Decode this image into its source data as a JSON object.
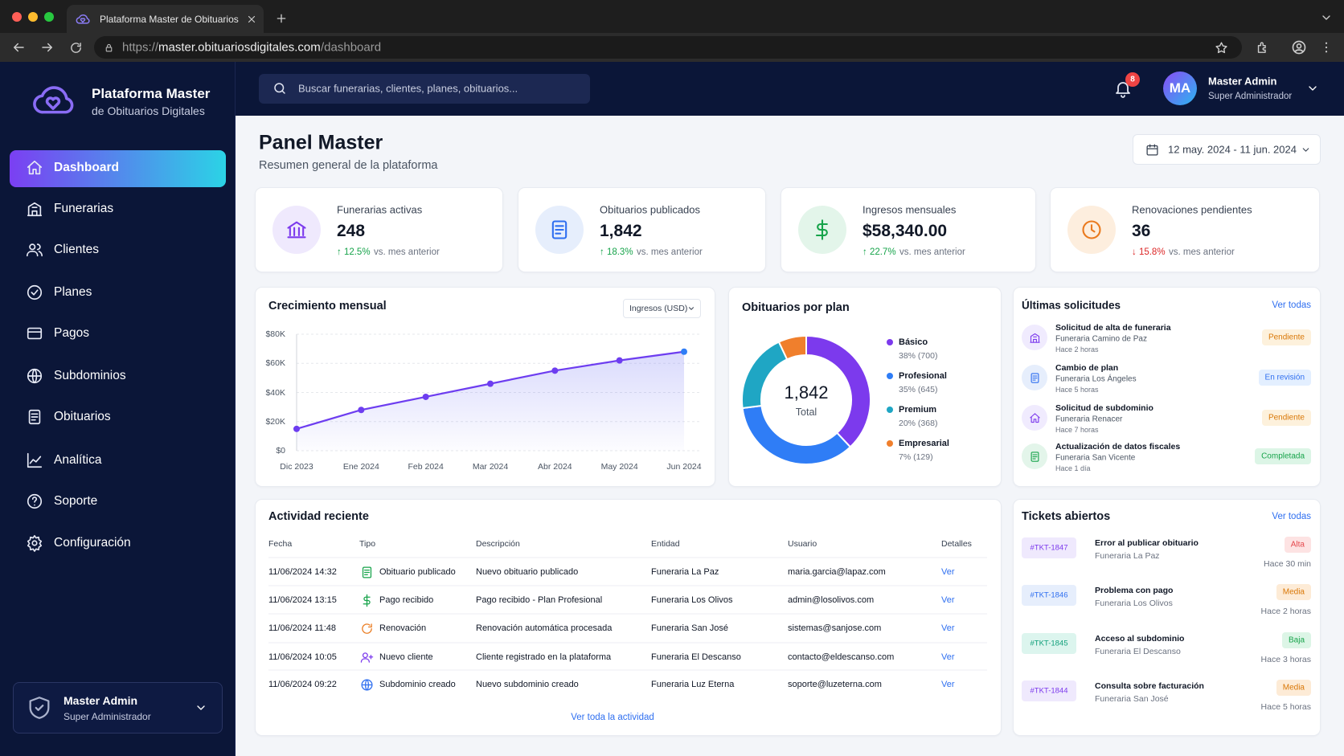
{
  "browser": {
    "tab_title": "Plataforma Master de Obituarios",
    "url_scheme": "https://",
    "url_host": "master.obituariosdigitales.com",
    "url_path": "/dashboard"
  },
  "sidebar": {
    "brand_title": "Plataforma Master",
    "brand_subtitle": "de Obituarios Digitales",
    "nav": [
      "Dashboard",
      "Funerarias",
      "Clientes",
      "Planes",
      "Pagos",
      "Subdominios",
      "Obituarios",
      "Analítica",
      "Soporte",
      "Configuración"
    ],
    "user_name": "Master Admin",
    "user_role": "Super Administrador"
  },
  "header": {
    "search_placeholder": "Buscar funerarias, clientes, planes, obituarios...",
    "notifications": "8",
    "user_initials": "MA",
    "user_name": "Master Admin",
    "user_role": "Super Administrador"
  },
  "page": {
    "title": "Panel Master",
    "subtitle": "Resumen general de la plataforma",
    "date_range": "12 may. 2024 - 11 jun. 2024"
  },
  "kpis": [
    {
      "label": "Funerarias activas",
      "value": "248",
      "change": "↑ 12.5%",
      "note": "vs. mes anterior"
    },
    {
      "label": "Obituarios publicados",
      "value": "1,842",
      "change": "↑ 18.3%",
      "note": "vs. mes anterior"
    },
    {
      "label": "Ingresos mensuales",
      "value": "$58,340.00",
      "change": "↑ 22.7%",
      "note": "vs. mes anterior"
    },
    {
      "label": "Renovaciones pendientes",
      "value": "36",
      "change": "↓ 15.8%",
      "note": "vs. mes anterior"
    }
  ],
  "chart_data": [
    {
      "type": "line",
      "title": "Crecimiento mensual",
      "selector": "Ingresos (USD)",
      "categories": [
        "Dic 2023",
        "Ene 2024",
        "Feb 2024",
        "Mar 2024",
        "Abr 2024",
        "May 2024",
        "Jun 2024"
      ],
      "series": [
        {
          "color": "#6d3df0",
          "values": [
            15000,
            28000,
            37000,
            46000,
            55000,
            62000,
            68000
          ]
        }
      ],
      "ylim": [
        0,
        80000
      ],
      "yticks": [
        {
          "value": 0,
          "label": "$0"
        },
        {
          "value": 20000,
          "label": "$20K"
        },
        {
          "value": 40000,
          "label": "$40K"
        },
        {
          "value": 60000,
          "label": "$60K"
        },
        {
          "value": 80000,
          "label": "$80K"
        }
      ],
      "grid": true
    },
    {
      "type": "pie",
      "title": "Obituarios por plan",
      "center_value": "1,842",
      "center_label": "Total",
      "categories": [
        "Básico",
        "Profesional",
        "Premium",
        "Empresarial"
      ],
      "values": [
        38,
        35,
        20,
        7
      ],
      "value_labels": [
        "38% (700)",
        "35% (645)",
        "20% (368)",
        "7% (129)"
      ],
      "colors": [
        "#7c3aed",
        "#2f7df6",
        "#1fa6c4",
        "#f07f2c"
      ]
    }
  ],
  "requests": {
    "title": "Últimas solicitudes",
    "link": "Ver todas",
    "items": [
      {
        "title": "Solicitud de alta de funeraria",
        "entity": "Funeraria Camino de Paz",
        "time": "Hace 2 horas",
        "status": "Pendiente"
      },
      {
        "title": "Cambio de plan",
        "entity": "Funeraria Los Ángeles",
        "time": "Hace 5 horas",
        "status": "En revisión"
      },
      {
        "title": "Solicitud de subdominio",
        "entity": "Funeraria Renacer",
        "time": "Hace 7 horas",
        "status": "Pendiente"
      },
      {
        "title": "Actualización de datos fiscales",
        "entity": "Funeraria San Vicente",
        "time": "Hace 1 día",
        "status": "Completada"
      }
    ]
  },
  "activity": {
    "title": "Actividad reciente",
    "columns": [
      "Fecha",
      "Tipo",
      "Descripción",
      "Entidad",
      "Usuario",
      "Detalles"
    ],
    "rows": [
      [
        "11/06/2024 14:32",
        "Obituario publicado",
        "Nuevo obituario publicado",
        "Funeraria La Paz",
        "maria.garcia@lapaz.com",
        "Ver"
      ],
      [
        "11/06/2024 13:15",
        "Pago recibido",
        "Pago recibido - Plan Profesional",
        "Funeraria Los Olivos",
        "admin@losolivos.com",
        "Ver"
      ],
      [
        "11/06/2024 11:48",
        "Renovación",
        "Renovación automática procesada",
        "Funeraria San José",
        "sistemas@sanjose.com",
        "Ver"
      ],
      [
        "11/06/2024 10:05",
        "Nuevo cliente",
        "Cliente registrado en la plataforma",
        "Funeraria El Descanso",
        "contacto@eldescanso.com",
        "Ver"
      ],
      [
        "11/06/2024 09:22",
        "Subdominio creado",
        "Nuevo subdominio creado",
        "Funeraria Luz Eterna",
        "soporte@luzeterna.com",
        "Ver"
      ]
    ],
    "link": "Ver toda la actividad"
  },
  "tickets": {
    "title": "Tickets abiertos",
    "link": "Ver todas",
    "items": [
      {
        "id": "#TKT-1847",
        "title": "Error al publicar obituario",
        "entity": "Funeraria La Paz",
        "priority": "Alta",
        "time": "Hace 30 min"
      },
      {
        "id": "#TKT-1846",
        "title": "Problema con pago",
        "entity": "Funeraria Los Olivos",
        "priority": "Media",
        "time": "Hace 2 horas"
      },
      {
        "id": "#TKT-1845",
        "title": "Acceso al subdominio",
        "entity": "Funeraria El Descanso",
        "priority": "Baja",
        "time": "Hace 3 horas"
      },
      {
        "id": "#TKT-1844",
        "title": "Consulta sobre facturación",
        "entity": "Funeraria San José",
        "priority": "Media",
        "time": "Hace 5 horas"
      }
    ]
  }
}
